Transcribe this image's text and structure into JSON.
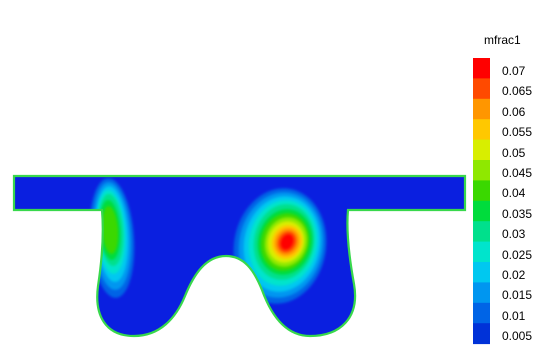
{
  "legend": {
    "title": "mfrac1",
    "levels": [
      {
        "label": "0.07",
        "color": "#ff0000"
      },
      {
        "label": "0.065",
        "color": "#ff4a00"
      },
      {
        "label": "0.06",
        "color": "#ff9600"
      },
      {
        "label": "0.055",
        "color": "#ffc800"
      },
      {
        "label": "0.05",
        "color": "#d8ee00"
      },
      {
        "label": "0.045",
        "color": "#8fe800"
      },
      {
        "label": "0.04",
        "color": "#3ad800"
      },
      {
        "label": "0.035",
        "color": "#00dc3c"
      },
      {
        "label": "0.03",
        "color": "#00e08c"
      },
      {
        "label": "0.025",
        "color": "#00e4cc"
      },
      {
        "label": "0.02",
        "color": "#00c8f0"
      },
      {
        "label": "0.015",
        "color": "#0096f0"
      },
      {
        "label": "0.01",
        "color": "#0064e6"
      },
      {
        "label": "0.005",
        "color": "#0032d8"
      }
    ]
  },
  "domain_fill_color": "#0a1fe0",
  "outline_color": "#38d84c"
}
